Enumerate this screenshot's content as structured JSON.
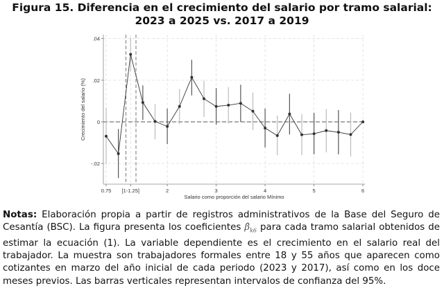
{
  "title": "Figura 15. Diferencia en el crecimiento del salario por tramo salarial: 2023 a 2025 vs. 2017 a 2019",
  "notes": {
    "label": "Notas:",
    "text_before": " Elaboración propia a partir de registros administrativos de la Base del Seguro de Cesantía (BSC). La figura presenta los coeficientes ",
    "symbol": "β̂",
    "symbol_sub": "k6",
    "text_after": " para cada tramo salarial obtenidos de estimar la ecuación (1). La variable dependiente es el crecimiento en el salario real del trabajador. La muestra son trabajadores formales entre 18 y 55 años que aparecen como cotizantes en marzo del año inicial de cada periodo (2023 y 2017), así como en los doce meses previos. Las barras verticales representan intervalos de confianza del 95%."
  },
  "chart_data": {
    "type": "line",
    "xlabel": "Salario como proporción del salario Mínimo",
    "ylabel": "Crecimiento del salario (%)",
    "xlim": [
      0.7,
      6.05
    ],
    "ylim": [
      -0.0285,
      0.0408
    ],
    "grid": true,
    "x_ticks": [
      {
        "value": 0.75,
        "label": "0.75"
      },
      {
        "value": 1.25,
        "label": "[1-1.25]"
      },
      {
        "value": 2,
        "label": "2"
      },
      {
        "value": 3,
        "label": "3"
      },
      {
        "value": 4,
        "label": "4"
      },
      {
        "value": 5,
        "label": "5"
      },
      {
        "value": 6,
        "label": "6"
      }
    ],
    "y_ticks": [
      {
        "value": -0.02,
        "label": "-.02"
      },
      {
        "value": 0,
        "label": "0"
      },
      {
        "value": 0.02,
        "label": ".02"
      },
      {
        "value": 0.04,
        "label": ".04"
      }
    ],
    "reference_lines": {
      "y": 0,
      "x": [
        1.155,
        1.36
      ]
    },
    "colors": {
      "line": "#333333",
      "ci_dark": "#555555",
      "ci_light": "#bbbbbb",
      "grid": "#dddddd"
    },
    "x": [
      0.75,
      1.0,
      1.25,
      1.5,
      1.75,
      2.0,
      2.25,
      2.5,
      2.75,
      3.0,
      3.25,
      3.5,
      3.75,
      4.0,
      4.25,
      4.5,
      4.75,
      5.0,
      5.25,
      5.5,
      5.75,
      6.0
    ],
    "y": [
      -0.0069,
      -0.0153,
      0.0324,
      0.0093,
      0.0002,
      -0.0022,
      0.0074,
      0.0214,
      0.0111,
      0.0074,
      0.008,
      0.0089,
      0.0051,
      -0.003,
      -0.0066,
      0.0038,
      -0.0062,
      -0.0057,
      -0.0042,
      -0.005,
      -0.0061,
      0
    ],
    "ci_upper": [
      0.0067,
      -0.0034,
      0.0404,
      0.0175,
      0.0085,
      0.0064,
      0.0158,
      0.0298,
      0.0198,
      0.0162,
      0.0167,
      0.0178,
      0.0141,
      0.0064,
      0.003,
      0.0135,
      0.0037,
      0.0043,
      0.0062,
      0.0057,
      0.0045,
      0
    ],
    "ci_lower": [
      -0.0204,
      -0.027,
      0.0242,
      0.0009,
      -0.0084,
      -0.0107,
      -0.0011,
      0.0127,
      0.0023,
      -0.0014,
      -0.0008,
      0,
      -0.004,
      -0.0123,
      -0.016,
      -0.0061,
      -0.016,
      -0.0156,
      -0.0147,
      -0.0156,
      -0.0166,
      0
    ]
  }
}
